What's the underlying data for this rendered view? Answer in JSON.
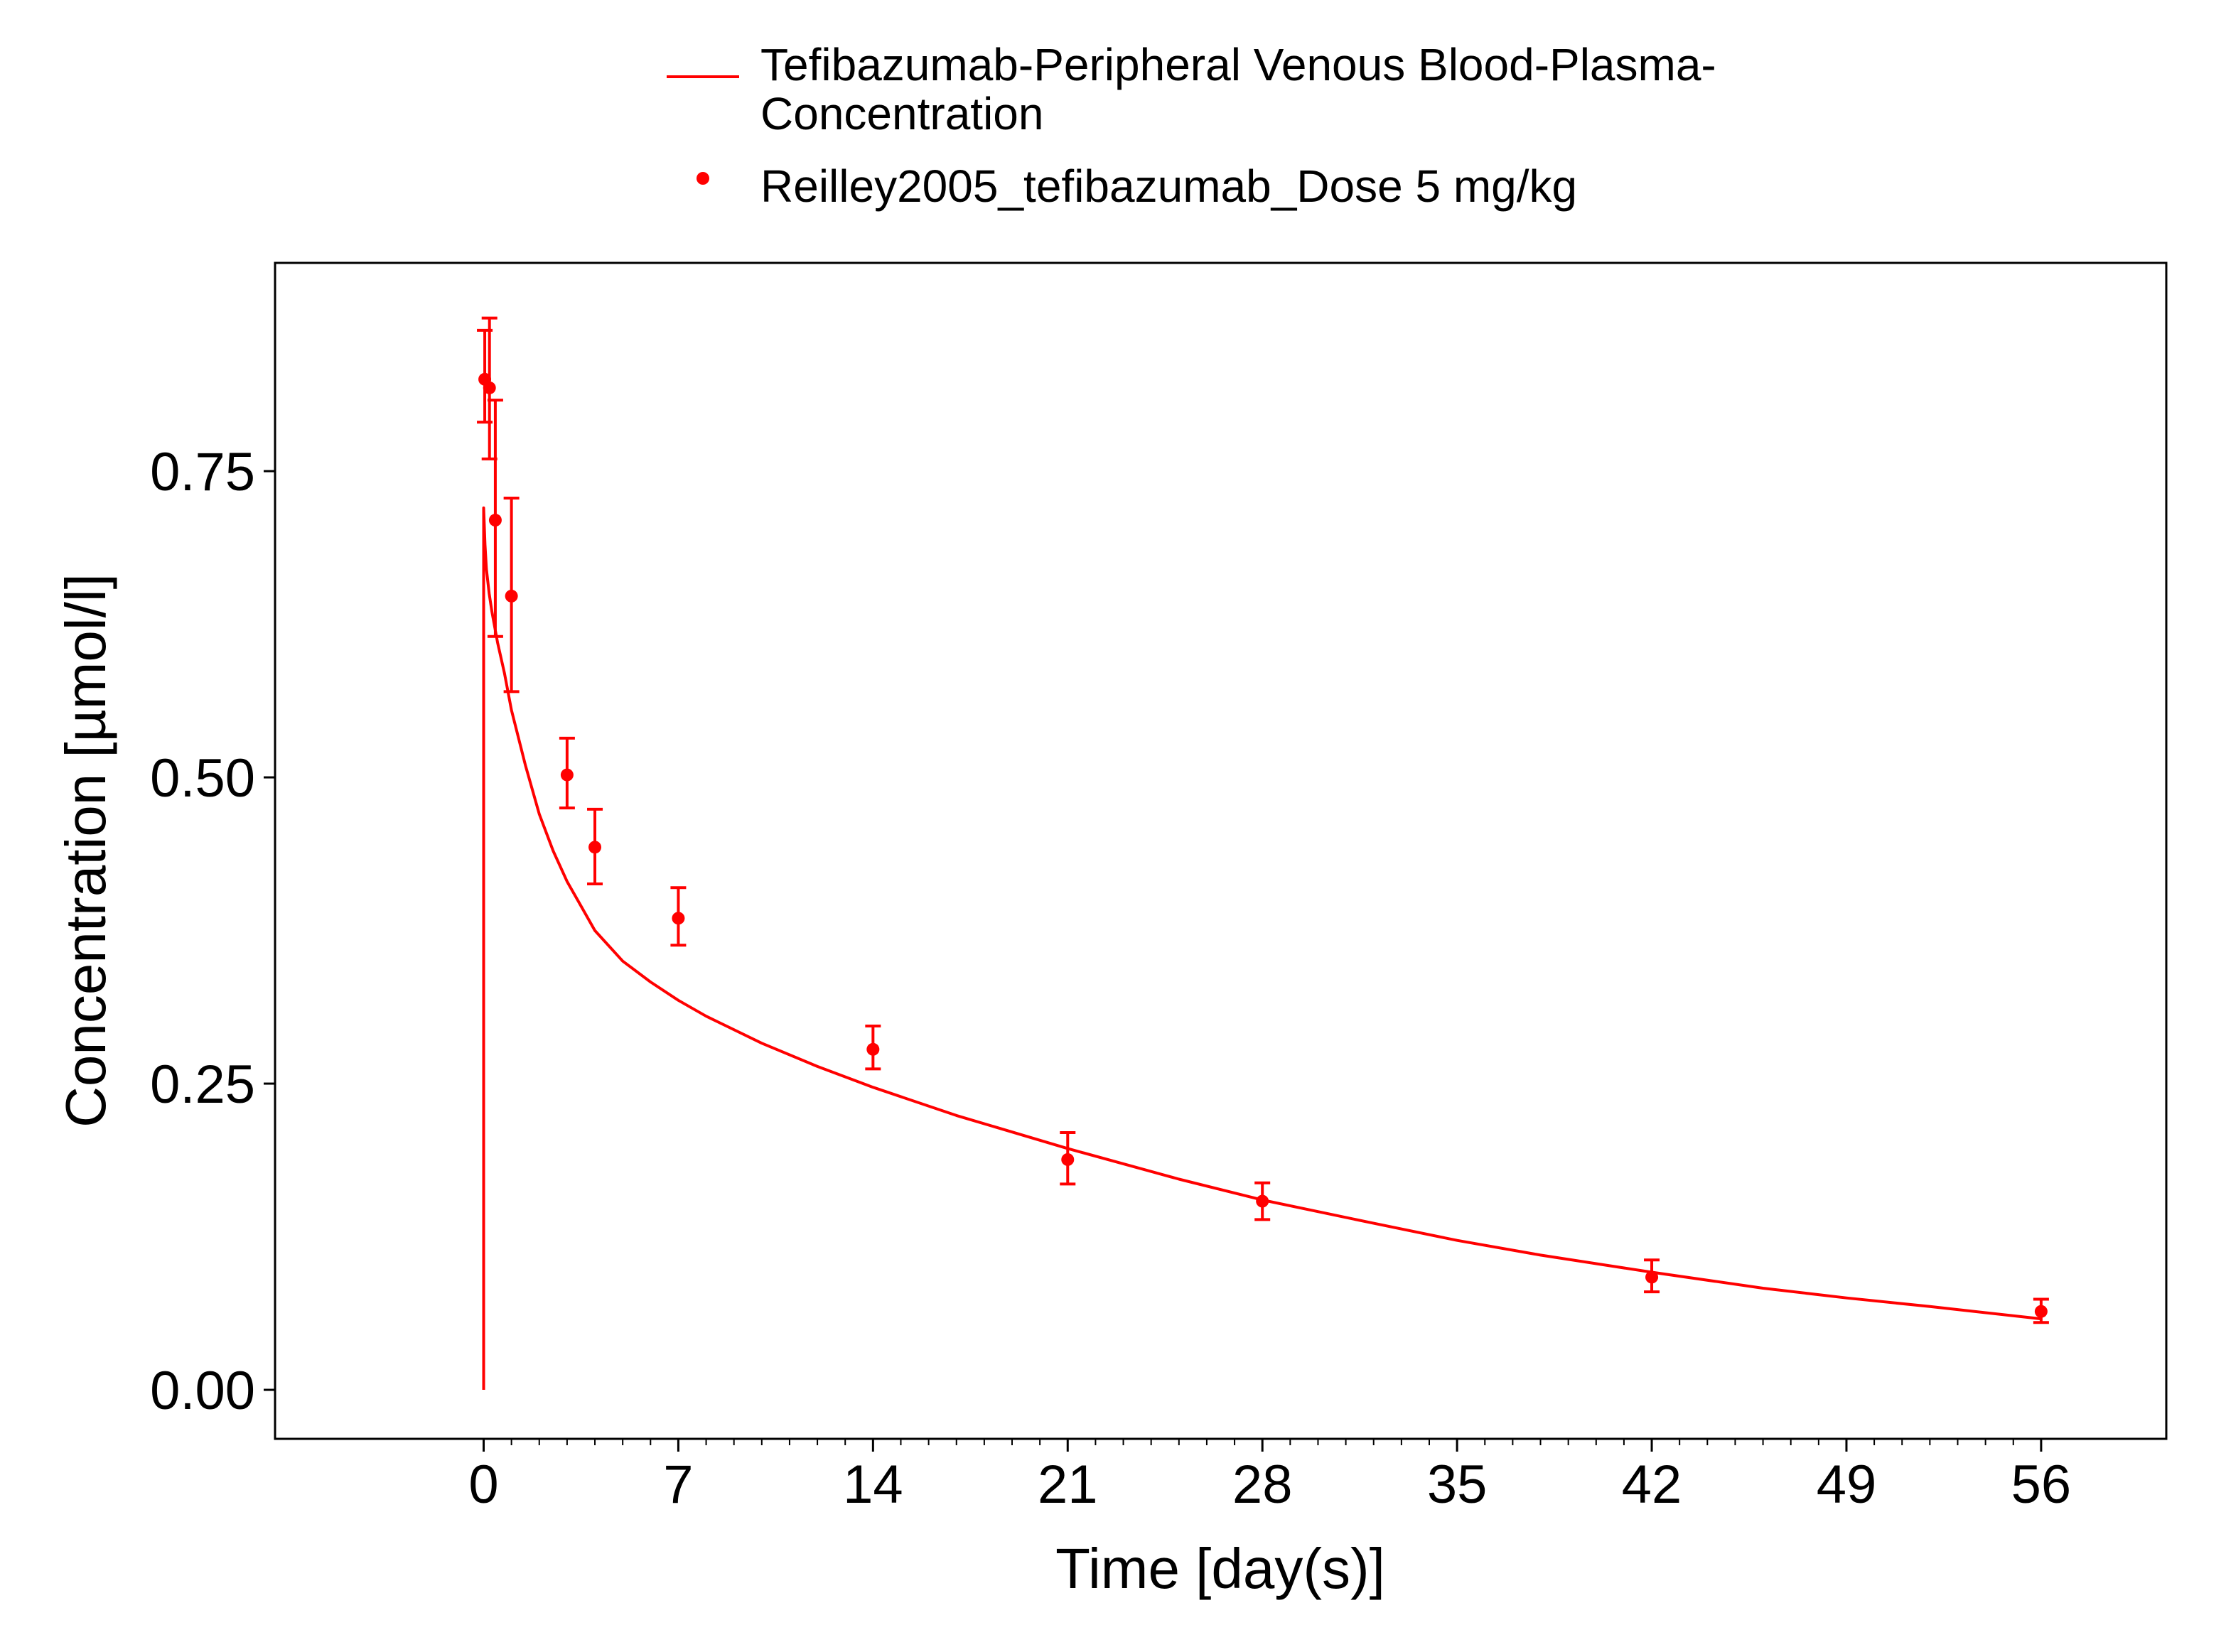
{
  "chart_data": {
    "type": "line",
    "xlabel": "Time [day(s)]",
    "ylabel": "Concentration [µmol/l]",
    "xlim": [
      -7.5,
      60.5
    ],
    "ylim": [
      -0.04,
      0.92
    ],
    "x_ticks": [
      0,
      7,
      14,
      21,
      28,
      35,
      42,
      49,
      56
    ],
    "x_tick_labels": [
      "0",
      "7",
      "14",
      "21",
      "28",
      "35",
      "42",
      "49",
      "56"
    ],
    "y_ticks": [
      0.0,
      0.25,
      0.5,
      0.75
    ],
    "y_tick_labels": [
      "0.00",
      "0.25",
      "0.50",
      "0.75"
    ],
    "grid": false,
    "legend_position": "top",
    "color": "#ff0000",
    "series": [
      {
        "name": "Tefibazumab-Peripheral Venous Blood-Plasma-Concentration",
        "legend_lines": [
          "Tefibazumab-Peripheral Venous Blood-Plasma-",
          "Concentration"
        ],
        "kind": "line",
        "x": [
          0,
          0,
          0.05,
          0.1,
          0.2,
          0.3,
          0.5,
          0.75,
          1,
          1.5,
          2,
          2.5,
          3,
          3.5,
          4,
          5,
          6,
          7,
          8,
          10,
          12,
          14,
          17,
          21,
          25,
          28,
          32,
          35,
          38,
          42,
          46,
          49,
          52,
          56
        ],
        "y": [
          0.0,
          0.72,
          0.69,
          0.67,
          0.65,
          0.635,
          0.61,
          0.585,
          0.555,
          0.51,
          0.47,
          0.44,
          0.415,
          0.395,
          0.375,
          0.35,
          0.333,
          0.318,
          0.305,
          0.283,
          0.264,
          0.247,
          0.224,
          0.197,
          0.172,
          0.155,
          0.136,
          0.122,
          0.11,
          0.096,
          0.083,
          0.075,
          0.068,
          0.058
        ]
      },
      {
        "name": "Reilley2005_tefibazumab_Dose 5 mg/kg",
        "legend_lines": [
          "Reilley2005_tefibazumab_Dose 5 mg/kg"
        ],
        "kind": "points",
        "x": [
          0.04,
          0.21,
          0.42,
          1,
          3,
          4,
          7,
          14,
          21,
          28,
          42,
          56
        ],
        "y": [
          0.825,
          0.818,
          0.71,
          0.648,
          0.502,
          0.443,
          0.385,
          0.278,
          0.188,
          0.154,
          0.092,
          0.064
        ],
        "err_low": [
          0.79,
          0.76,
          0.615,
          0.57,
          0.475,
          0.413,
          0.363,
          0.262,
          0.168,
          0.139,
          0.08,
          0.055
        ],
        "err_high": [
          0.865,
          0.875,
          0.808,
          0.728,
          0.532,
          0.474,
          0.41,
          0.297,
          0.21,
          0.169,
          0.106,
          0.074
        ]
      }
    ]
  }
}
